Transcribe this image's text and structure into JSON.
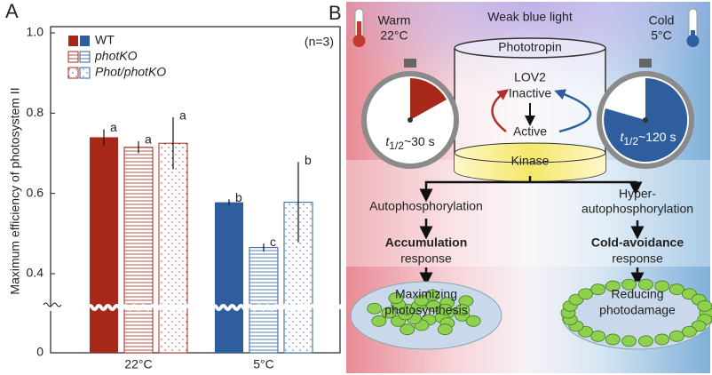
{
  "panel_a_label": "A",
  "panel_b_label": "B",
  "chart_data": {
    "type": "bar",
    "y_label": "Maximum efficiency of photosystem II",
    "annotation": "(n=3)",
    "categories": [
      "22°C",
      "5°C"
    ],
    "category_colors": [
      "#a8291a",
      "#2f5e9e"
    ],
    "series": [
      {
        "name": "WT",
        "style": "solid",
        "values": [
          0.74,
          0.578
        ],
        "errors": [
          0.02,
          0.007
        ],
        "letters": [
          "a",
          "b"
        ]
      },
      {
        "name": "photKO",
        "style": "hatch",
        "values": [
          0.715,
          0.465
        ],
        "errors": [
          0.015,
          0.01
        ],
        "letters": [
          "a",
          "c"
        ]
      },
      {
        "name": "Phot/photKO",
        "style": "dots",
        "values": [
          0.725,
          0.578
        ],
        "errors": [
          0.065,
          0.1
        ],
        "letters": [
          "a",
          "b"
        ]
      }
    ],
    "ylim": [
      0,
      1
    ],
    "yticks": [
      0,
      0.4,
      0.6,
      0.8,
      {
        "value": 1,
        "label": "1.0"
      }
    ],
    "axis_break": true,
    "legend": "upper-left"
  },
  "diagram": {
    "warm": {
      "label": "Warm",
      "temp": "22°C"
    },
    "cold": {
      "label": "Cold",
      "temp": "5°C"
    },
    "light": "Weak blue light",
    "protein": "Phototropin",
    "lov2": {
      "label": "LOV2",
      "inactive": "Inactive",
      "active": "Active"
    },
    "timer_left": [
      "t",
      "1/2",
      "~30 s"
    ],
    "timer_right": [
      "t",
      "1/2",
      "~120 s"
    ],
    "kinase": "Kinase",
    "left": {
      "process": "Autophosphorylation",
      "response_bold": "Accumulation",
      "response": "response",
      "outcome": [
        "Maximizing",
        "photosynthesis"
      ]
    },
    "right": {
      "process": [
        "Hyper-",
        "autophosphorylation"
      ],
      "response_bold": "Cold-avoidance",
      "response": "response",
      "outcome": [
        "Reducing",
        "photodamage"
      ]
    }
  }
}
